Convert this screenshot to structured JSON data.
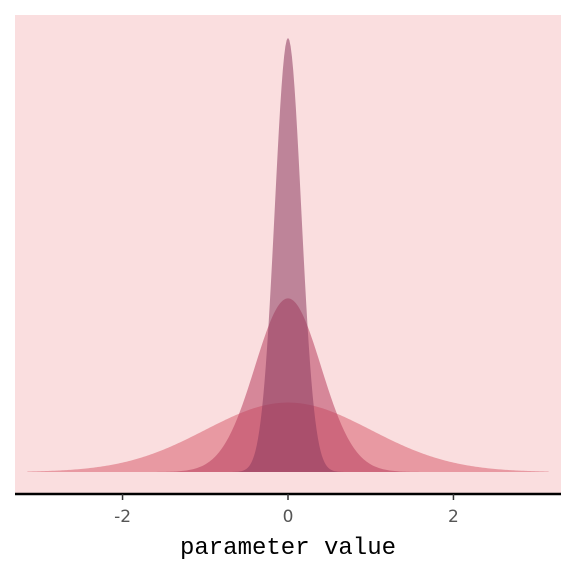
{
  "chart_data": {
    "type": "area",
    "title": "",
    "xlabel": "parameter value",
    "ylabel": "",
    "xlim": [
      -3.3,
      3.3
    ],
    "x_ticks": [
      -2,
      0,
      2
    ],
    "x_tick_labels": [
      "-2",
      "0",
      "2"
    ],
    "grid": false,
    "legend": "none",
    "distribution": "normal",
    "x_range": [
      -3.15,
      3.15
    ],
    "series": [
      {
        "mean": 0,
        "sd": 1.0,
        "peak_density": 0.399,
        "color": "#D9606F",
        "opacity": 0.55
      },
      {
        "mean": 0,
        "sd": 0.4,
        "peak_density": 0.997,
        "color": "#B8405E",
        "opacity": 0.55
      },
      {
        "mean": 0,
        "sd": 0.16,
        "peak_density": 2.493,
        "color": "#8C3A5E",
        "opacity": 0.55
      }
    ],
    "colors": {
      "panel_background": "#FADEDF",
      "axis_line": "#000000",
      "tick_label": "#555555"
    }
  }
}
